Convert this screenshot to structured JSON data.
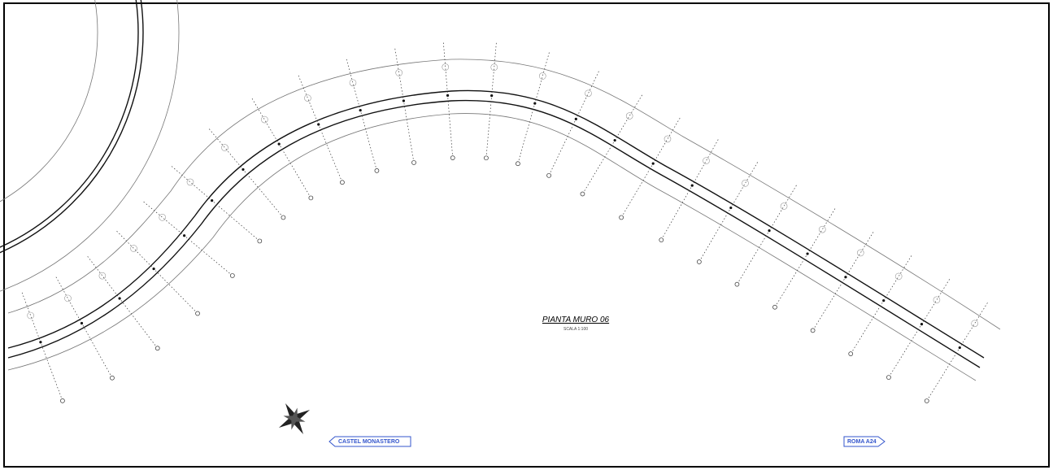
{
  "drawing": {
    "title": "PIANTA MURO 06",
    "scale": "SCALA 1:100",
    "directions": {
      "left": "CASTEL MONASTERO",
      "right": "ROMA A24"
    }
  }
}
